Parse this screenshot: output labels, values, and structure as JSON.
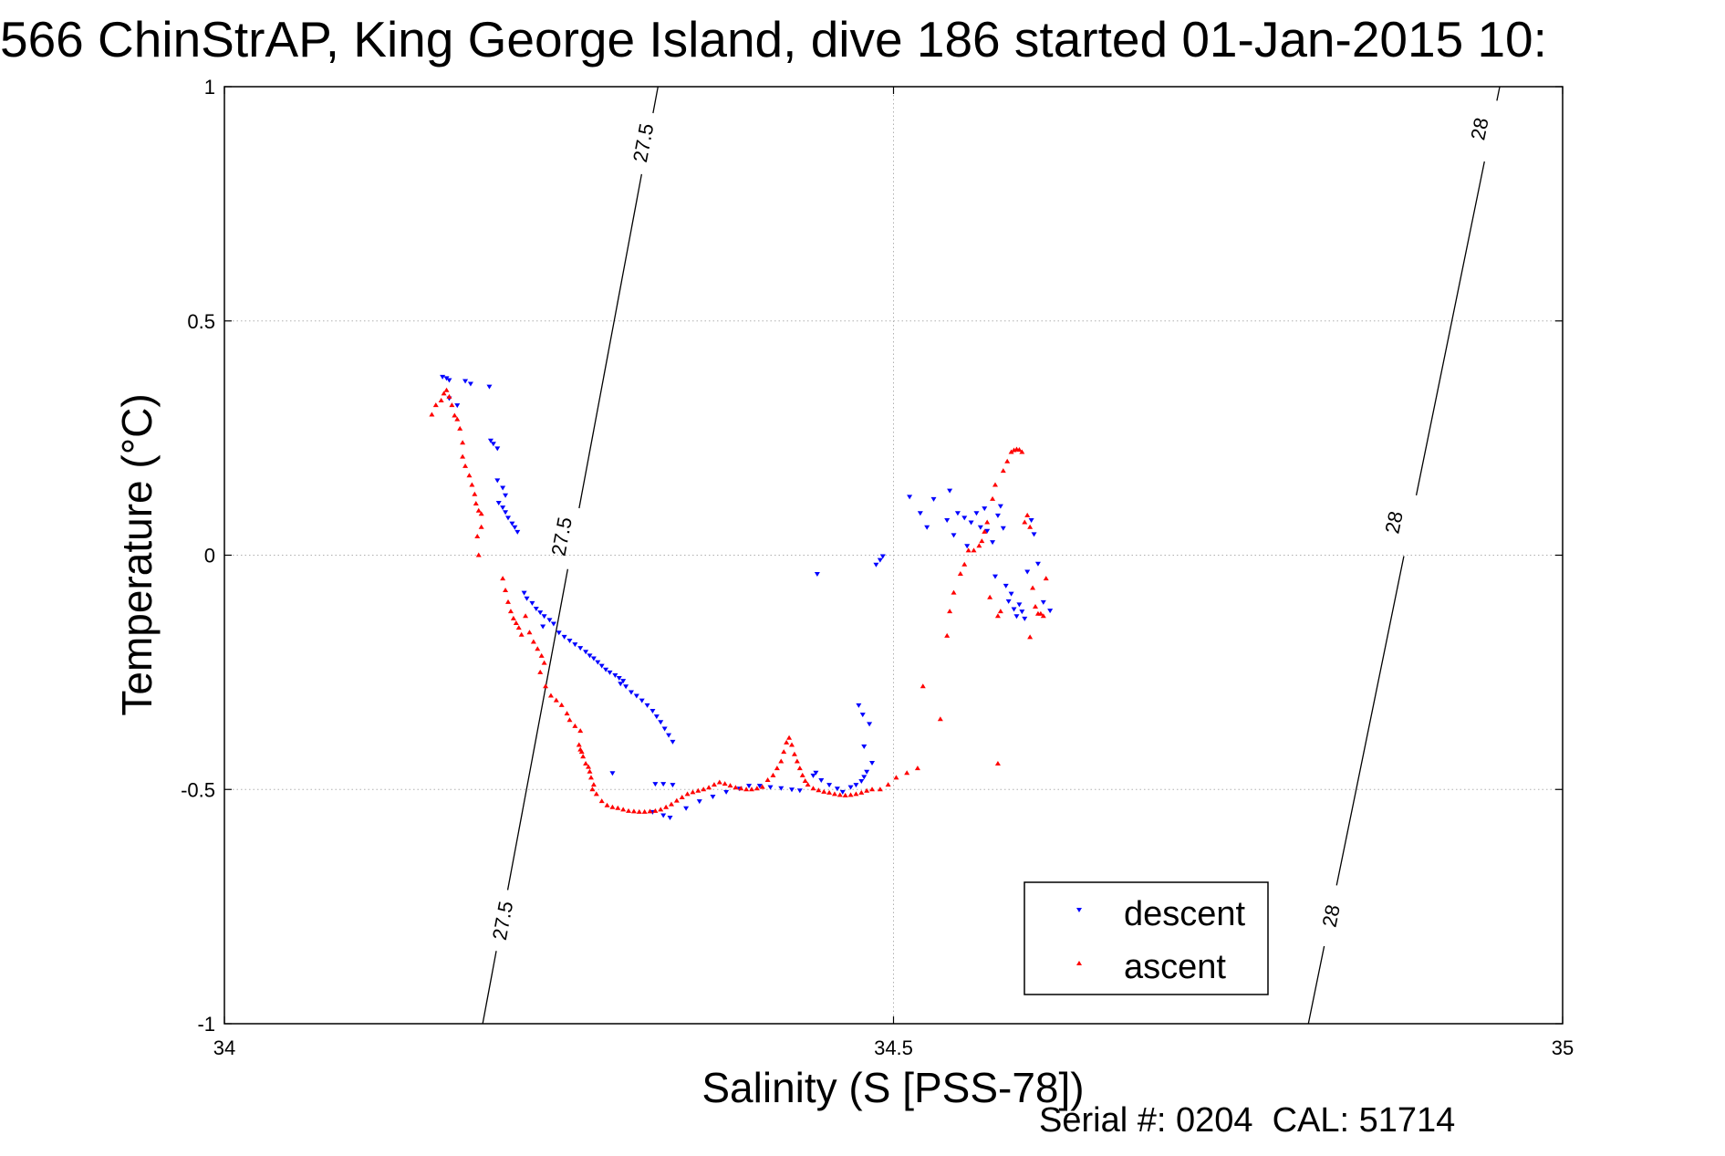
{
  "chart_data": {
    "type": "scatter",
    "title": "566 ChinStrAP, King George Island, dive 186 started 01-Jan-2015 10:",
    "xlabel": "Salinity (S [PSS-78])",
    "ylabel": "Temperature (°C)",
    "xlim": [
      34,
      35
    ],
    "ylim": [
      -1,
      1
    ],
    "xticks": [
      {
        "value": 34,
        "label": "34"
      },
      {
        "value": 34.5,
        "label": "34.5"
      },
      {
        "value": 35,
        "label": "35"
      }
    ],
    "yticks": [
      {
        "value": -1,
        "label": "-1"
      },
      {
        "value": -0.5,
        "label": "-0.5"
      },
      {
        "value": 0,
        "label": "0"
      },
      {
        "value": 0.5,
        "label": "0.5"
      },
      {
        "value": 1,
        "label": "1"
      }
    ],
    "grid": true,
    "legend_position": "bottom-right",
    "footer": "Serial #: 0204  CAL: 51714",
    "isopycnals": [
      {
        "label": "27.5",
        "points": [
          [
            34.193,
            -1.0
          ],
          [
            34.324,
            1.0
          ]
        ],
        "label_positions": [
          [
            34.208,
            -0.78
          ],
          [
            34.252,
            0.04
          ],
          [
            34.313,
            0.88
          ]
        ]
      },
      {
        "label": "28",
        "points": [
          [
            34.81,
            -1.0
          ],
          [
            34.953,
            1.0
          ]
        ],
        "label_positions": [
          [
            34.827,
            -0.77
          ],
          [
            34.874,
            0.07
          ],
          [
            34.938,
            0.91
          ]
        ]
      }
    ],
    "series": [
      {
        "name": "descent",
        "color": "#0000ff",
        "marker": "triangle-down",
        "points": [
          [
            34.163,
            0.381
          ],
          [
            34.166,
            0.378
          ],
          [
            34.168,
            0.374
          ],
          [
            34.18,
            0.372
          ],
          [
            34.184,
            0.366
          ],
          [
            34.198,
            0.36
          ],
          [
            34.168,
            0.335
          ],
          [
            34.174,
            0.32
          ],
          [
            34.199,
            0.245
          ],
          [
            34.201,
            0.238
          ],
          [
            34.204,
            0.228
          ],
          [
            34.204,
            0.16
          ],
          [
            34.208,
            0.144
          ],
          [
            34.21,
            0.128
          ],
          [
            34.205,
            0.112
          ],
          [
            34.208,
            0.102
          ],
          [
            34.21,
            0.092
          ],
          [
            34.212,
            0.08
          ],
          [
            34.215,
            0.068
          ],
          [
            34.217,
            0.06
          ],
          [
            34.219,
            0.05
          ],
          [
            34.224,
            -0.08
          ],
          [
            34.226,
            -0.092
          ],
          [
            34.23,
            -0.102
          ],
          [
            34.233,
            -0.114
          ],
          [
            34.236,
            -0.122
          ],
          [
            34.239,
            -0.13
          ],
          [
            34.243,
            -0.138
          ],
          [
            34.246,
            -0.146
          ],
          [
            34.238,
            -0.152
          ],
          [
            34.25,
            -0.165
          ],
          [
            34.254,
            -0.174
          ],
          [
            34.258,
            -0.182
          ],
          [
            34.262,
            -0.19
          ],
          [
            34.266,
            -0.198
          ],
          [
            34.27,
            -0.206
          ],
          [
            34.273,
            -0.214
          ],
          [
            34.276,
            -0.22
          ],
          [
            34.279,
            -0.228
          ],
          [
            34.282,
            -0.236
          ],
          [
            34.285,
            -0.244
          ],
          [
            34.288,
            -0.25
          ],
          [
            34.292,
            -0.256
          ],
          [
            34.295,
            -0.262
          ],
          [
            34.298,
            -0.268
          ],
          [
            34.296,
            -0.274
          ],
          [
            34.3,
            -0.28
          ],
          [
            34.304,
            -0.292
          ],
          [
            34.308,
            -0.3
          ],
          [
            34.312,
            -0.31
          ],
          [
            34.316,
            -0.32
          ],
          [
            34.32,
            -0.332
          ],
          [
            34.323,
            -0.344
          ],
          [
            34.326,
            -0.356
          ],
          [
            34.329,
            -0.37
          ],
          [
            34.332,
            -0.384
          ],
          [
            34.335,
            -0.398
          ],
          [
            34.29,
            -0.465
          ],
          [
            34.322,
            -0.488
          ],
          [
            34.328,
            -0.488
          ],
          [
            34.335,
            -0.49
          ],
          [
            34.32,
            -0.548
          ],
          [
            34.328,
            -0.555
          ],
          [
            34.333,
            -0.56
          ],
          [
            34.345,
            -0.54
          ],
          [
            34.355,
            -0.525
          ],
          [
            34.365,
            -0.515
          ],
          [
            34.375,
            -0.505
          ],
          [
            34.385,
            -0.498
          ],
          [
            34.392,
            -0.492
          ],
          [
            34.4,
            -0.492
          ],
          [
            34.408,
            -0.495
          ],
          [
            34.416,
            -0.497
          ],
          [
            34.424,
            -0.5
          ],
          [
            34.43,
            -0.502
          ],
          [
            34.44,
            -0.47
          ],
          [
            34.442,
            -0.464
          ],
          [
            34.446,
            -0.48
          ],
          [
            34.452,
            -0.49
          ],
          [
            34.458,
            -0.498
          ],
          [
            34.462,
            -0.505
          ],
          [
            34.468,
            -0.495
          ],
          [
            34.472,
            -0.49
          ],
          [
            34.476,
            -0.482
          ],
          [
            34.478,
            -0.473
          ],
          [
            34.48,
            -0.462
          ],
          [
            34.484,
            -0.443
          ],
          [
            34.478,
            -0.408
          ],
          [
            34.474,
            -0.32
          ],
          [
            34.477,
            -0.34
          ],
          [
            34.482,
            -0.36
          ],
          [
            34.443,
            -0.04
          ],
          [
            34.487,
            -0.02
          ],
          [
            34.49,
            -0.01
          ],
          [
            34.492,
            -0.002
          ],
          [
            34.512,
            0.125
          ],
          [
            34.52,
            0.09
          ],
          [
            34.525,
            0.06
          ],
          [
            34.53,
            0.12
          ],
          [
            34.54,
            0.075
          ],
          [
            34.542,
            0.138
          ],
          [
            34.545,
            0.043
          ],
          [
            34.548,
            0.09
          ],
          [
            34.553,
            0.08
          ],
          [
            34.555,
            0.02
          ],
          [
            34.558,
            0.07
          ],
          [
            34.562,
            0.09
          ],
          [
            34.565,
            0.06
          ],
          [
            34.568,
            0.1
          ],
          [
            34.57,
            0.052
          ],
          [
            34.574,
            0.028
          ],
          [
            34.576,
            -0.045
          ],
          [
            34.578,
            0.085
          ],
          [
            34.58,
            0.105
          ],
          [
            34.582,
            0.058
          ],
          [
            34.584,
            -0.065
          ],
          [
            34.586,
            -0.098
          ],
          [
            34.588,
            -0.082
          ],
          [
            34.59,
            -0.115
          ],
          [
            34.592,
            -0.13
          ],
          [
            34.594,
            -0.105
          ],
          [
            34.596,
            -0.12
          ],
          [
            34.598,
            -0.135
          ],
          [
            34.6,
            -0.035
          ],
          [
            34.603,
            0.075
          ],
          [
            34.605,
            0.045
          ],
          [
            34.608,
            -0.018
          ],
          [
            34.612,
            -0.1
          ],
          [
            34.617,
            -0.118
          ]
        ]
      },
      {
        "name": "ascent",
        "color": "#ff0000",
        "marker": "triangle-up",
        "points": [
          [
            34.155,
            0.3
          ],
          [
            34.158,
            0.32
          ],
          [
            34.162,
            0.33
          ],
          [
            34.164,
            0.345
          ],
          [
            34.166,
            0.352
          ],
          [
            34.168,
            0.338
          ],
          [
            34.17,
            0.32
          ],
          [
            34.172,
            0.298
          ],
          [
            34.174,
            0.29
          ],
          [
            34.176,
            0.27
          ],
          [
            34.178,
            0.24
          ],
          [
            34.178,
            0.21
          ],
          [
            34.18,
            0.19
          ],
          [
            34.183,
            0.17
          ],
          [
            34.185,
            0.15
          ],
          [
            34.187,
            0.13
          ],
          [
            34.188,
            0.11
          ],
          [
            34.19,
            0.095
          ],
          [
            34.192,
            0.088
          ],
          [
            34.192,
            0.06
          ],
          [
            34.189,
            0.04
          ],
          [
            34.19,
            0.0
          ],
          [
            34.208,
            -0.05
          ],
          [
            34.21,
            -0.075
          ],
          [
            34.212,
            -0.1
          ],
          [
            34.214,
            -0.12
          ],
          [
            34.216,
            -0.135
          ],
          [
            34.218,
            -0.145
          ],
          [
            34.22,
            -0.155
          ],
          [
            34.222,
            -0.17
          ],
          [
            34.225,
            -0.13
          ],
          [
            34.228,
            -0.165
          ],
          [
            34.231,
            -0.185
          ],
          [
            34.234,
            -0.2
          ],
          [
            34.237,
            -0.215
          ],
          [
            34.239,
            -0.23
          ],
          [
            34.236,
            -0.25
          ],
          [
            34.24,
            -0.28
          ],
          [
            34.244,
            -0.3
          ],
          [
            34.248,
            -0.31
          ],
          [
            34.252,
            -0.32
          ],
          [
            34.256,
            -0.338
          ],
          [
            34.258,
            -0.352
          ],
          [
            34.262,
            -0.365
          ],
          [
            34.266,
            -0.375
          ],
          [
            34.265,
            -0.405
          ],
          [
            34.266,
            -0.415
          ],
          [
            34.267,
            -0.42
          ],
          [
            34.268,
            -0.43
          ],
          [
            34.27,
            -0.445
          ],
          [
            34.272,
            -0.452
          ],
          [
            34.273,
            -0.462
          ],
          [
            34.274,
            -0.475
          ],
          [
            34.276,
            -0.49
          ],
          [
            34.275,
            -0.5
          ],
          [
            34.278,
            -0.51
          ],
          [
            34.282,
            -0.525
          ],
          [
            34.286,
            -0.534
          ],
          [
            34.29,
            -0.538
          ],
          [
            34.294,
            -0.54
          ],
          [
            34.298,
            -0.543
          ],
          [
            34.302,
            -0.546
          ],
          [
            34.306,
            -0.547
          ],
          [
            34.31,
            -0.548
          ],
          [
            34.314,
            -0.548
          ],
          [
            34.318,
            -0.547
          ],
          [
            34.322,
            -0.546
          ],
          [
            34.326,
            -0.543
          ],
          [
            34.33,
            -0.538
          ],
          [
            34.334,
            -0.532
          ],
          [
            34.338,
            -0.524
          ],
          [
            34.342,
            -0.517
          ],
          [
            34.346,
            -0.51
          ],
          [
            34.35,
            -0.506
          ],
          [
            34.354,
            -0.503
          ],
          [
            34.358,
            -0.5
          ],
          [
            34.362,
            -0.496
          ],
          [
            34.366,
            -0.49
          ],
          [
            34.37,
            -0.485
          ],
          [
            34.374,
            -0.488
          ],
          [
            34.378,
            -0.492
          ],
          [
            34.382,
            -0.496
          ],
          [
            34.386,
            -0.498
          ],
          [
            34.39,
            -0.5
          ],
          [
            34.394,
            -0.5
          ],
          [
            34.398,
            -0.498
          ],
          [
            34.402,
            -0.495
          ],
          [
            34.406,
            -0.48
          ],
          [
            34.41,
            -0.47
          ],
          [
            34.413,
            -0.455
          ],
          [
            34.416,
            -0.44
          ],
          [
            34.418,
            -0.42
          ],
          [
            34.42,
            -0.4
          ],
          [
            34.422,
            -0.39
          ],
          [
            34.424,
            -0.405
          ],
          [
            34.426,
            -0.425
          ],
          [
            34.428,
            -0.44
          ],
          [
            34.43,
            -0.455
          ],
          [
            34.432,
            -0.47
          ],
          [
            34.434,
            -0.482
          ],
          [
            34.436,
            -0.49
          ],
          [
            34.44,
            -0.498
          ],
          [
            34.444,
            -0.502
          ],
          [
            34.448,
            -0.505
          ],
          [
            34.452,
            -0.507
          ],
          [
            34.456,
            -0.51
          ],
          [
            34.46,
            -0.512
          ],
          [
            34.464,
            -0.513
          ],
          [
            34.468,
            -0.512
          ],
          [
            34.472,
            -0.51
          ],
          [
            34.476,
            -0.507
          ],
          [
            34.48,
            -0.503
          ],
          [
            34.484,
            -0.5
          ],
          [
            34.49,
            -0.5
          ],
          [
            34.496,
            -0.49
          ],
          [
            34.502,
            -0.475
          ],
          [
            34.51,
            -0.465
          ],
          [
            34.518,
            -0.455
          ],
          [
            34.522,
            -0.28
          ],
          [
            34.535,
            -0.35
          ],
          [
            34.54,
            -0.172
          ],
          [
            34.542,
            -0.12
          ],
          [
            34.545,
            -0.08
          ],
          [
            34.55,
            -0.04
          ],
          [
            34.553,
            -0.02
          ],
          [
            34.556,
            0.01
          ],
          [
            34.56,
            0.01
          ],
          [
            34.564,
            0.02
          ],
          [
            34.566,
            0.03
          ],
          [
            34.568,
            0.05
          ],
          [
            34.57,
            0.07
          ],
          [
            34.572,
            -0.09
          ],
          [
            34.574,
            0.12
          ],
          [
            34.576,
            0.15
          ],
          [
            34.578,
            -0.13
          ],
          [
            34.58,
            -0.12
          ],
          [
            34.582,
            0.18
          ],
          [
            34.585,
            0.2
          ],
          [
            34.588,
            0.22
          ],
          [
            34.59,
            0.224
          ],
          [
            34.592,
            0.226
          ],
          [
            34.594,
            0.225
          ],
          [
            34.596,
            0.22
          ],
          [
            34.598,
            0.07
          ],
          [
            34.6,
            0.085
          ],
          [
            34.602,
            0.06
          ],
          [
            34.604,
            -0.07
          ],
          [
            34.606,
            -0.11
          ],
          [
            34.608,
            -0.125
          ],
          [
            34.61,
            -0.125
          ],
          [
            34.612,
            -0.13
          ],
          [
            34.614,
            -0.05
          ],
          [
            34.578,
            -0.445
          ],
          [
            34.602,
            -0.175
          ]
        ]
      }
    ]
  }
}
